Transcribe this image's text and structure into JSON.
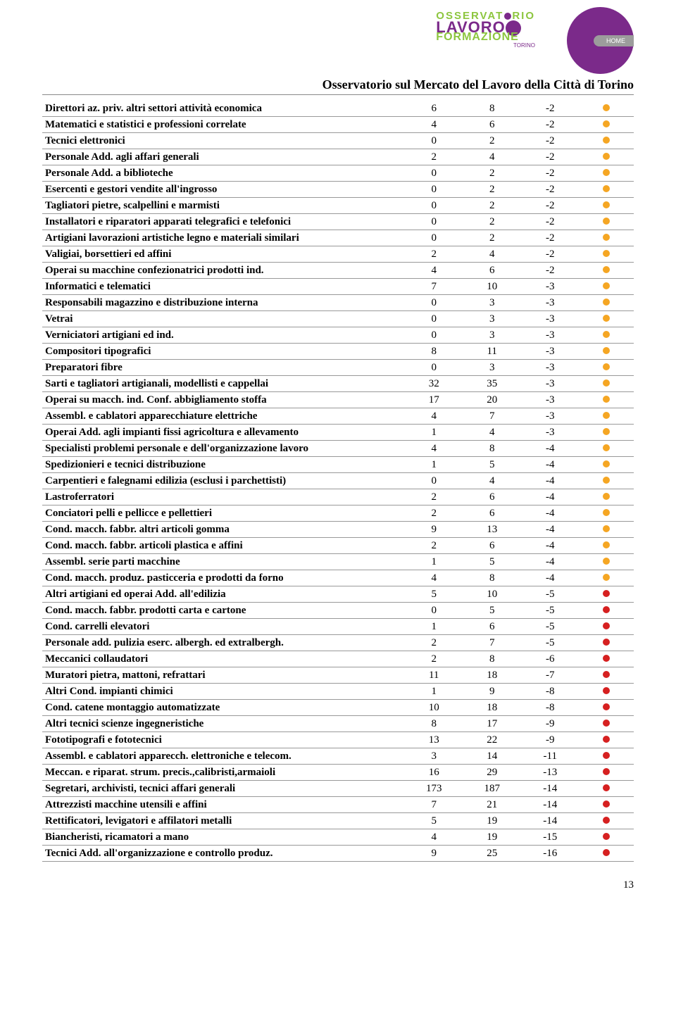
{
  "header": {
    "logo_line1_a": "OSSERVAT",
    "logo_line1_b": "RIO",
    "logo_line2": "LAVORO",
    "logo_line3": "FORMAZIONE",
    "logo_city": "TORINO",
    "home": "HOME"
  },
  "title": "Osservatorio sul Mercato del Lavoro della Città di Torino",
  "colors": {
    "orange": "#f5a623",
    "red": "#d62020"
  },
  "rows": [
    {
      "label": "Direttori az. priv. altri settori attività economica",
      "v1": 6,
      "v2": 8,
      "v3": -2,
      "c": "orange"
    },
    {
      "label": "Matematici e statistici e professioni correlate",
      "v1": 4,
      "v2": 6,
      "v3": -2,
      "c": "orange"
    },
    {
      "label": "Tecnici elettronici",
      "v1": 0,
      "v2": 2,
      "v3": -2,
      "c": "orange"
    },
    {
      "label": "Personale Add. agli affari generali",
      "v1": 2,
      "v2": 4,
      "v3": -2,
      "c": "orange"
    },
    {
      "label": "Personale Add. a biblioteche",
      "v1": 0,
      "v2": 2,
      "v3": -2,
      "c": "orange"
    },
    {
      "label": "Esercenti e gestori vendite all'ingrosso",
      "v1": 0,
      "v2": 2,
      "v3": -2,
      "c": "orange"
    },
    {
      "label": "Tagliatori pietre, scalpellini e marmisti",
      "v1": 0,
      "v2": 2,
      "v3": -2,
      "c": "orange"
    },
    {
      "label": "Installatori e riparatori apparati telegrafici e telefonici",
      "v1": 0,
      "v2": 2,
      "v3": -2,
      "c": "orange"
    },
    {
      "label": "Artigiani lavorazioni artistiche legno e materiali similari",
      "v1": 0,
      "v2": 2,
      "v3": -2,
      "c": "orange"
    },
    {
      "label": "Valigiai, borsettieri ed affini",
      "v1": 2,
      "v2": 4,
      "v3": -2,
      "c": "orange"
    },
    {
      "label": "Operai su macchine confezionatrici prodotti ind.",
      "v1": 4,
      "v2": 6,
      "v3": -2,
      "c": "orange"
    },
    {
      "label": "Informatici e telematici",
      "v1": 7,
      "v2": 10,
      "v3": -3,
      "c": "orange"
    },
    {
      "label": "Responsabili magazzino e distribuzione interna",
      "v1": 0,
      "v2": 3,
      "v3": -3,
      "c": "orange"
    },
    {
      "label": "Vetrai",
      "v1": 0,
      "v2": 3,
      "v3": -3,
      "c": "orange"
    },
    {
      "label": "Verniciatori artigiani ed ind.",
      "v1": 0,
      "v2": 3,
      "v3": -3,
      "c": "orange"
    },
    {
      "label": "Compositori tipografici",
      "v1": 8,
      "v2": 11,
      "v3": -3,
      "c": "orange"
    },
    {
      "label": "Preparatori fibre",
      "v1": 0,
      "v2": 3,
      "v3": -3,
      "c": "orange"
    },
    {
      "label": "Sarti e tagliatori artigianali, modellisti e cappellai",
      "v1": 32,
      "v2": 35,
      "v3": -3,
      "c": "orange"
    },
    {
      "label": "Operai su macch. ind. Conf. abbigliamento stoffa",
      "v1": 17,
      "v2": 20,
      "v3": -3,
      "c": "orange"
    },
    {
      "label": "Assembl. e cablatori apparecchiature elettriche",
      "v1": 4,
      "v2": 7,
      "v3": -3,
      "c": "orange"
    },
    {
      "label": "Operai Add. agli impianti fissi agricoltura e allevamento",
      "v1": 1,
      "v2": 4,
      "v3": -3,
      "c": "orange"
    },
    {
      "label": "Specialisti problemi personale e dell'organizzazione lavoro",
      "v1": 4,
      "v2": 8,
      "v3": -4,
      "c": "orange"
    },
    {
      "label": "Spedizionieri e tecnici distribuzione",
      "v1": 1,
      "v2": 5,
      "v3": -4,
      "c": "orange"
    },
    {
      "label": "Carpentieri e falegnami edilizia (esclusi i parchettisti)",
      "v1": 0,
      "v2": 4,
      "v3": -4,
      "c": "orange"
    },
    {
      "label": "Lastroferratori",
      "v1": 2,
      "v2": 6,
      "v3": -4,
      "c": "orange"
    },
    {
      "label": "Conciatori pelli e pellicce e pellettieri",
      "v1": 2,
      "v2": 6,
      "v3": -4,
      "c": "orange"
    },
    {
      "label": "Cond. macch. fabbr. altri articoli gomma",
      "v1": 9,
      "v2": 13,
      "v3": -4,
      "c": "orange"
    },
    {
      "label": "Cond. macch. fabbr. articoli plastica e affini",
      "v1": 2,
      "v2": 6,
      "v3": -4,
      "c": "orange"
    },
    {
      "label": "Assembl. serie parti macchine",
      "v1": 1,
      "v2": 5,
      "v3": -4,
      "c": "orange"
    },
    {
      "label": "Cond. macch. produz. pasticceria e prodotti da forno",
      "v1": 4,
      "v2": 8,
      "v3": -4,
      "c": "orange"
    },
    {
      "label": "Altri artigiani ed operai Add. all'edilizia",
      "v1": 5,
      "v2": 10,
      "v3": -5,
      "c": "red"
    },
    {
      "label": "Cond. macch. fabbr. prodotti carta e cartone",
      "v1": 0,
      "v2": 5,
      "v3": -5,
      "c": "red"
    },
    {
      "label": "Cond. carrelli elevatori",
      "v1": 1,
      "v2": 6,
      "v3": -5,
      "c": "red"
    },
    {
      "label": "Personale add. pulizia eserc. albergh. ed extralbergh.",
      "v1": 2,
      "v2": 7,
      "v3": -5,
      "c": "red"
    },
    {
      "label": "Meccanici collaudatori",
      "v1": 2,
      "v2": 8,
      "v3": -6,
      "c": "red"
    },
    {
      "label": "Muratori pietra, mattoni, refrattari",
      "v1": 11,
      "v2": 18,
      "v3": -7,
      "c": "red"
    },
    {
      "label": "Altri Cond. impianti chimici",
      "v1": 1,
      "v2": 9,
      "v3": -8,
      "c": "red"
    },
    {
      "label": "Cond. catene montaggio automatizzate",
      "v1": 10,
      "v2": 18,
      "v3": -8,
      "c": "red"
    },
    {
      "label": "Altri tecnici scienze ingegneristiche",
      "v1": 8,
      "v2": 17,
      "v3": -9,
      "c": "red"
    },
    {
      "label": "Fototipografi e fototecnici",
      "v1": 13,
      "v2": 22,
      "v3": -9,
      "c": "red"
    },
    {
      "label": "Assembl. e cablatori apparecch. elettroniche e telecom.",
      "v1": 3,
      "v2": 14,
      "v3": -11,
      "c": "red"
    },
    {
      "label": "Meccan. e riparat. strum. precis.,calibristi,armaioli",
      "v1": 16,
      "v2": 29,
      "v3": -13,
      "c": "red"
    },
    {
      "label": "Segretari, archivisti, tecnici affari generali",
      "v1": 173,
      "v2": 187,
      "v3": -14,
      "c": "red"
    },
    {
      "label": "Attrezzisti macchine utensili e affini",
      "v1": 7,
      "v2": 21,
      "v3": -14,
      "c": "red"
    },
    {
      "label": "Rettificatori, levigatori e affilatori metalli",
      "v1": 5,
      "v2": 19,
      "v3": -14,
      "c": "red"
    },
    {
      "label": "Biancheristi, ricamatori a mano",
      "v1": 4,
      "v2": 19,
      "v3": -15,
      "c": "red"
    },
    {
      "label": "Tecnici Add. all'organizzazione e controllo produz.",
      "v1": 9,
      "v2": 25,
      "v3": -16,
      "c": "red"
    }
  ],
  "page_number": "13"
}
